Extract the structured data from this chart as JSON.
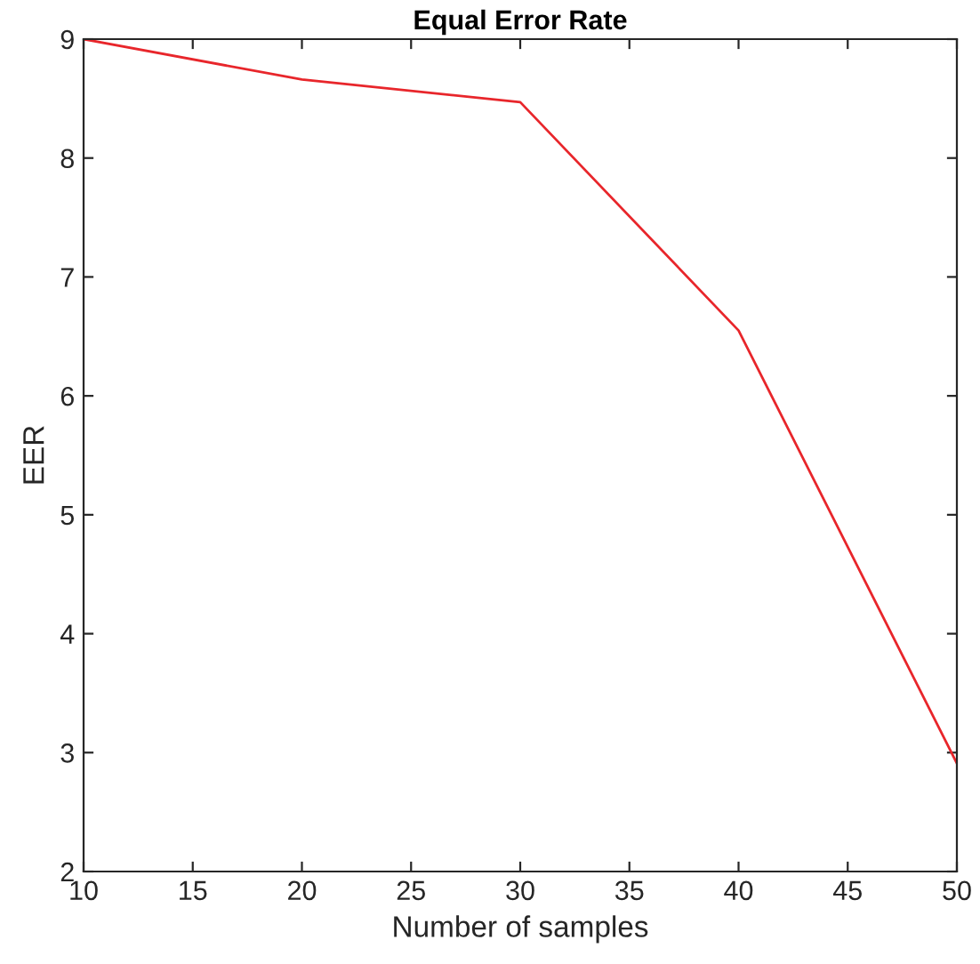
{
  "chart_data": {
    "type": "line",
    "title": "Equal Error Rate",
    "xlabel": "Number of samples",
    "ylabel": "EER",
    "x": [
      10,
      20,
      30,
      40,
      50
    ],
    "series": [
      {
        "color": "#e8262b",
        "values": [
          9,
          8.66,
          8.47,
          6.55,
          2.91
        ]
      }
    ],
    "xlim": [
      10,
      50
    ],
    "xticks": [
      10,
      15,
      20,
      25,
      30,
      35,
      40,
      45,
      50
    ],
    "ylim": [
      2,
      9
    ],
    "yticks": [
      2,
      3,
      4,
      5,
      6,
      7,
      8,
      9
    ],
    "grid": false,
    "legend": false,
    "marker": "none",
    "line_style": "solid"
  }
}
